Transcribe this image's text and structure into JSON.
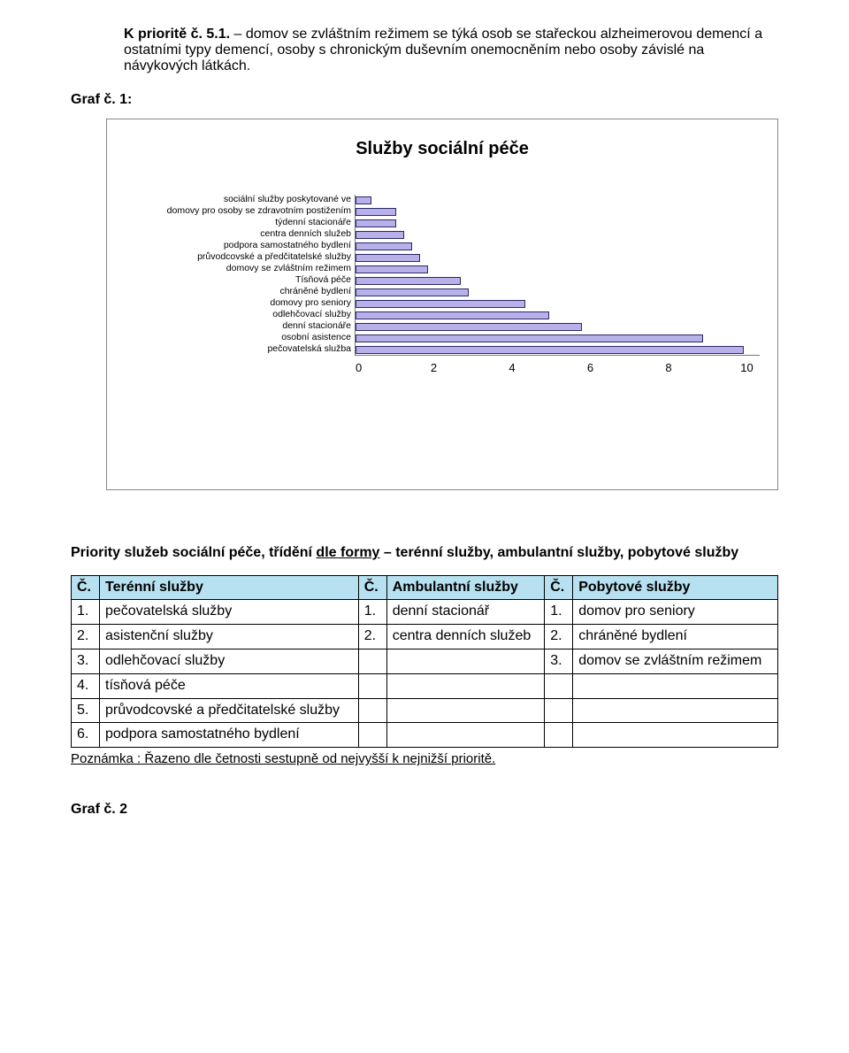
{
  "heading": {
    "title": "K prioritě č. 5.1.",
    "body": " – domov se zvláštním režimem se týká osob se stařeckou alzheimerovou demencí a ostatními typy demencí, osoby s chronickým duševním onemocněním nebo osoby závislé na návykových látkách."
  },
  "graf1_label": "Graf č. 1:",
  "chart": {
    "title": "Služby sociální péče",
    "type": "bar-horizontal",
    "xlim": [
      0,
      10
    ],
    "xtick_labels": [
      "0",
      "2",
      "4",
      "6",
      "8",
      "10"
    ],
    "bar_color": "#b8b0e8",
    "bar_border": "#2a2a66",
    "series": [
      {
        "label": "sociální služby poskytované ve",
        "value": 0.4
      },
      {
        "label": "domovy pro osoby se zdravotním postižením",
        "value": 1.0
      },
      {
        "label": "týdenní stacionáře",
        "value": 1.0
      },
      {
        "label": "centra denních služeb",
        "value": 1.2
      },
      {
        "label": "podpora samostatného bydlení",
        "value": 1.4
      },
      {
        "label": "průvodcovské a předčitatelské služby",
        "value": 1.6
      },
      {
        "label": "domovy se zvláštním režimem",
        "value": 1.8
      },
      {
        "label": "Tísňová péče",
        "value": 2.6
      },
      {
        "label": "chráněné bydlení",
        "value": 2.8
      },
      {
        "label": "domovy pro seniory",
        "value": 4.2
      },
      {
        "label": "odlehčovací služby",
        "value": 4.8
      },
      {
        "label": "denní stacionáře",
        "value": 5.6
      },
      {
        "label": "osobní asistence",
        "value": 8.6
      },
      {
        "label": "pečovatelská služba",
        "value": 9.6
      }
    ],
    "background_color": "#ffffff"
  },
  "priority_heading": {
    "pre": "Priority služeb sociální péče, třídění ",
    "u": "dle formy",
    "post": " – terénní služby, ambulantní služby, pobytové služby"
  },
  "table": {
    "header_bg": "#b7e1f0",
    "cols": [
      {
        "n": "Č.",
        "h": "Terénní služby"
      },
      {
        "n": "Č.",
        "h": "Ambulantní služby"
      },
      {
        "n": "Č.",
        "h": "Pobytové služby"
      }
    ],
    "rows": [
      [
        {
          "n": "1.",
          "t": "pečovatelská služby"
        },
        {
          "n": "1.",
          "t": "denní stacionář"
        },
        {
          "n": "1.",
          "t": "domov pro seniory"
        }
      ],
      [
        {
          "n": "2.",
          "t": "asistenční služby"
        },
        {
          "n": "2.",
          "t": "centra denních služeb"
        },
        {
          "n": "2.",
          "t": "chráněné bydlení"
        }
      ],
      [
        {
          "n": "3.",
          "t": "odlehčovací služby"
        },
        {
          "n": "",
          "t": ""
        },
        {
          "n": "3.",
          "t": "domov se zvláštním režimem"
        }
      ],
      [
        {
          "n": "4.",
          "t": "tísňová péče"
        },
        {
          "n": "",
          "t": ""
        },
        {
          "n": "",
          "t": ""
        }
      ],
      [
        {
          "n": "5.",
          "t": "průvodcovské a předčitatelské služby"
        },
        {
          "n": "",
          "t": ""
        },
        {
          "n": "",
          "t": ""
        }
      ],
      [
        {
          "n": "6.",
          "t": "podpora samostatného bydlení"
        },
        {
          "n": "",
          "t": ""
        },
        {
          "n": "",
          "t": ""
        }
      ]
    ]
  },
  "note": {
    "u": "Poznámka :",
    "rest": " Řazeno dle četnosti sestupně od nejvyšší k nejnižší prioritě."
  },
  "graf2_label": "Graf č. 2"
}
